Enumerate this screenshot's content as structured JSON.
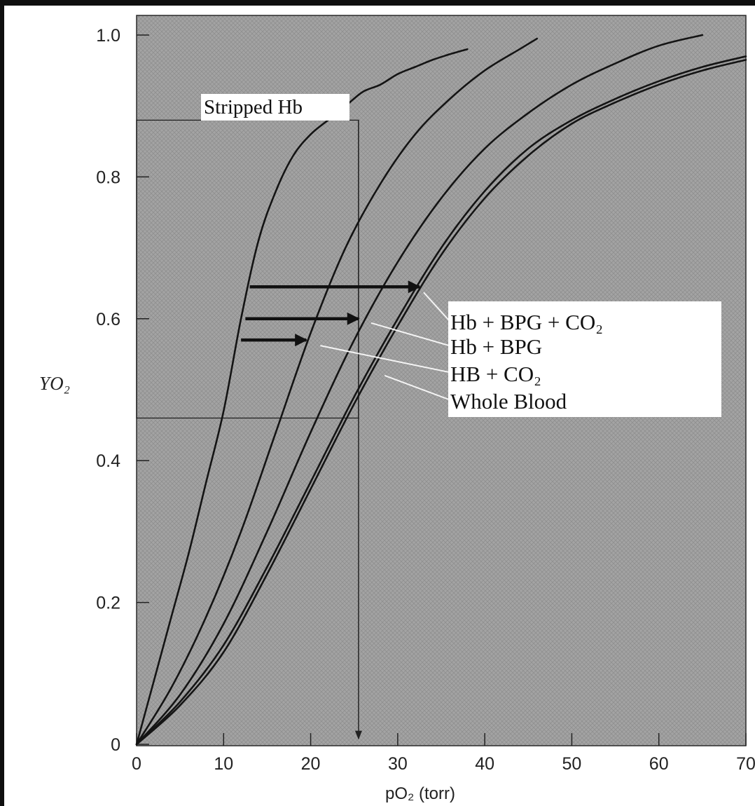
{
  "chart_data": {
    "type": "line",
    "title": "",
    "xlabel": "pO₂ (torr)",
    "ylabel": "YO₂",
    "xlim": [
      0,
      70
    ],
    "ylim": [
      0,
      1.0
    ],
    "x_ticks": [
      0,
      10,
      20,
      30,
      40,
      50,
      60,
      70
    ],
    "x_tick_labels": [
      "0",
      "10",
      "20",
      "30",
      "40",
      "50",
      "60",
      "70"
    ],
    "y_ticks": [
      0,
      0.2,
      0.4,
      0.6,
      0.8,
      1.0
    ],
    "y_tick_labels": [
      "0",
      "0.2",
      "0.4",
      "0.6",
      "0.8",
      "1.0"
    ],
    "grid": false,
    "series": [
      {
        "name": "Stripped Hb",
        "x": [
          0,
          2,
          4,
          6,
          8,
          10,
          12,
          14,
          16,
          18,
          20,
          22,
          24,
          26,
          28,
          30,
          32,
          34,
          36,
          38
        ],
        "y": [
          0,
          0.09,
          0.18,
          0.27,
          0.37,
          0.47,
          0.6,
          0.71,
          0.78,
          0.83,
          0.86,
          0.88,
          0.9,
          0.92,
          0.93,
          0.945,
          0.955,
          0.965,
          0.973,
          0.98
        ]
      },
      {
        "name": "Hb + BPG",
        "x": [
          0,
          4,
          8,
          12,
          16,
          20,
          24,
          28,
          32,
          36,
          40,
          44,
          46
        ],
        "y": [
          0,
          0.08,
          0.18,
          0.3,
          0.44,
          0.58,
          0.7,
          0.79,
          0.86,
          0.91,
          0.95,
          0.98,
          0.995
        ]
      },
      {
        "name": "HB + CO₂",
        "x": [
          0,
          5,
          10,
          15,
          20,
          25,
          30,
          35,
          40,
          45,
          50,
          55,
          60,
          65
        ],
        "y": [
          0,
          0.07,
          0.17,
          0.3,
          0.44,
          0.57,
          0.68,
          0.77,
          0.84,
          0.89,
          0.93,
          0.96,
          0.985,
          1.0
        ]
      },
      {
        "name": "Hb + BPG + CO₂",
        "x": [
          0,
          5,
          10,
          15,
          20,
          25,
          30,
          35,
          40,
          45,
          50,
          55,
          60,
          65,
          70
        ],
        "y": [
          0,
          0.06,
          0.14,
          0.25,
          0.37,
          0.49,
          0.6,
          0.7,
          0.78,
          0.84,
          0.88,
          0.91,
          0.935,
          0.955,
          0.97
        ]
      },
      {
        "name": "Whole Blood",
        "x": [
          0,
          5,
          10,
          15,
          20,
          25,
          30,
          35,
          40,
          45,
          50,
          55,
          60,
          65,
          70
        ],
        "y": [
          0,
          0.055,
          0.13,
          0.24,
          0.36,
          0.48,
          0.59,
          0.69,
          0.77,
          0.83,
          0.875,
          0.905,
          0.93,
          0.95,
          0.965
        ]
      }
    ],
    "legend": {
      "placement": "center-right",
      "entries": [
        "Hb + BPG + CO₂",
        "Hb + BPG",
        "HB + CO₂",
        "Whole Blood"
      ]
    },
    "annotations": {
      "stripped_label": "Stripped Hb",
      "reference_box": {
        "x": [
          0,
          25.5
        ],
        "y": [
          0.46,
          0.88
        ]
      },
      "vertical_arrow": {
        "x": 25.5,
        "y_from": 0.88,
        "y_to": 0
      },
      "shift_arrows": [
        {
          "y": 0.645,
          "x_from": 13,
          "x_to": 32.5
        },
        {
          "y": 0.6,
          "x_from": 12.5,
          "x_to": 25.5
        },
        {
          "y": 0.57,
          "x_from": 12,
          "x_to": 19.5
        }
      ]
    },
    "colors": {
      "plot_bg": "#a3a3a3",
      "curves": "#141414",
      "legend_bg": "#ffffff",
      "page_bg": "#ffffff"
    }
  }
}
